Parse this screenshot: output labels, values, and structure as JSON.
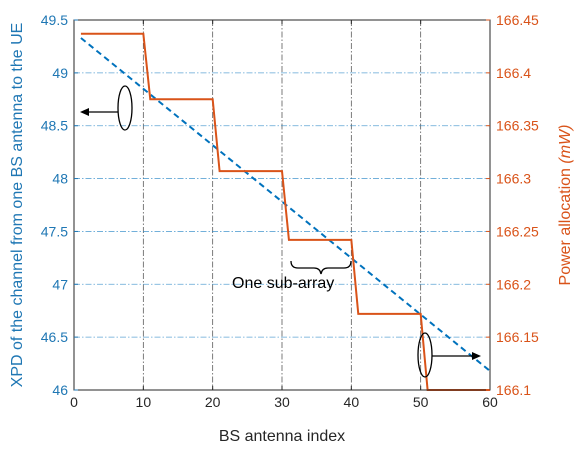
{
  "chart_data": {
    "type": "line",
    "xlabel": "BS antenna index",
    "ylabel_left": "XPD of the channel from one BS antenna to the UE",
    "ylabel_right_text": "Power allocation ",
    "ylabel_right_unit": "(mW)",
    "xlim": [
      0,
      60
    ],
    "ylim_left": [
      46,
      49.5
    ],
    "ylim_right": [
      166.1,
      166.45
    ],
    "x_ticks": [
      0,
      10,
      20,
      30,
      40,
      50,
      60
    ],
    "y_left_ticks": [
      46,
      46.5,
      47,
      47.5,
      48,
      48.5,
      49,
      49.5
    ],
    "y_right_ticks": [
      166.1,
      166.15,
      166.2,
      166.25,
      166.3,
      166.35,
      166.4,
      166.45
    ],
    "x_tick_labels": [
      "0",
      "10",
      "20",
      "30",
      "40",
      "50",
      "60"
    ],
    "y_left_tick_labels": [
      "46",
      "46.5",
      "47",
      "47.5",
      "48",
      "48.5",
      "49",
      "49.5"
    ],
    "y_right_tick_labels": [
      "166.1",
      "166.15",
      "166.2",
      "166.25",
      "166.3",
      "166.35",
      "166.4",
      "166.45"
    ],
    "grid": true,
    "series": [
      {
        "axis": "left",
        "style": "dashed",
        "color": "#0072bd",
        "x": [
          1,
          60
        ],
        "y": [
          49.33,
          46.18
        ]
      },
      {
        "axis": "right",
        "style": "step",
        "color": "#d95319",
        "x": [
          1,
          10,
          11,
          20,
          21,
          30,
          31,
          40,
          41,
          50,
          51,
          60
        ],
        "y": [
          166.437,
          166.437,
          166.375,
          166.375,
          166.307,
          166.307,
          166.242,
          166.242,
          166.172,
          166.172,
          166.1,
          166.1
        ]
      }
    ],
    "annotation": "One sub-array"
  }
}
